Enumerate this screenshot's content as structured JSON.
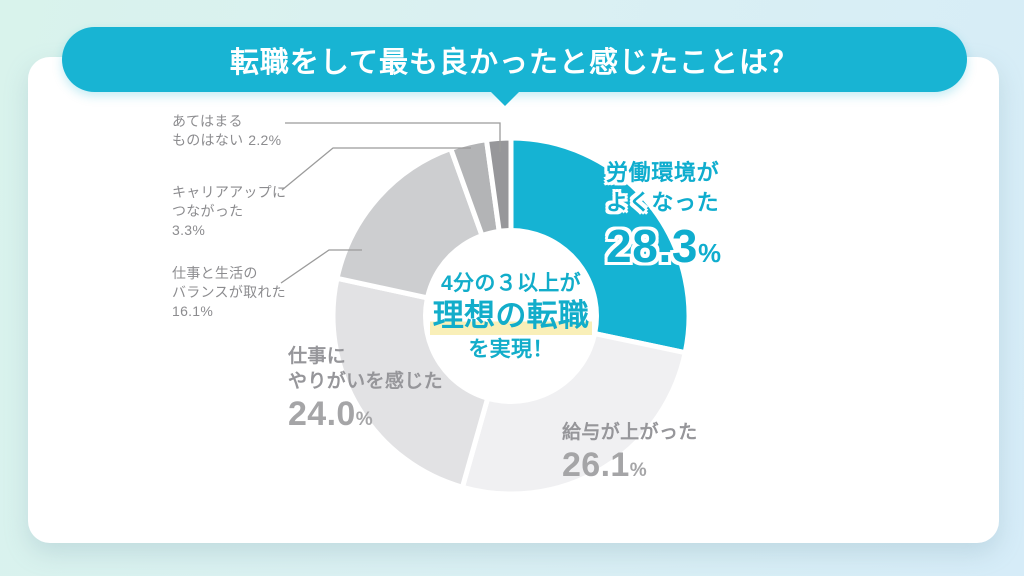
{
  "chart_data": {
    "type": "pie",
    "title": "転職をして最も良かったと感じたことは？",
    "unit": "%",
    "legend_position": "around-slices",
    "segments": [
      {
        "name": "労働環境がよくなった",
        "label_lines": [
          "労働環境が",
          "よくなった"
        ],
        "value": 28.3,
        "pct_num": "28.3",
        "pct_sign": "%",
        "color": "#15b3d3"
      },
      {
        "name": "給与が上がった",
        "label_lines": [
          "給与が上がった"
        ],
        "value": 26.1,
        "pct_num": "26.1",
        "pct_sign": "%",
        "color": "#f0f0f2"
      },
      {
        "name": "仕事にやりがいを感じた",
        "label_lines": [
          "仕事に",
          "やりがいを感じた"
        ],
        "value": 24.0,
        "pct_num": "24.0",
        "pct_sign": "%",
        "color": "#e2e2e4"
      },
      {
        "name": "仕事と生活のバランスが取れた",
        "label_lines": [
          "仕事と生活の",
          "バランスが取れた"
        ],
        "value": 16.1,
        "pct_num": "16.1",
        "pct_sign": "%",
        "color": "#cdced0"
      },
      {
        "name": "キャリアアップにつながった",
        "label_lines": [
          "キャリアアップに",
          "つながった"
        ],
        "value": 3.3,
        "pct_num": "3.3",
        "pct_sign": "%",
        "color": "#b3b4b6"
      },
      {
        "name": "あてはまるものはない",
        "label_lines": [
          "あてはまる",
          "ものはない"
        ],
        "value": 2.2,
        "pct_num": "2.2",
        "pct_sign": "%",
        "color": "#97979a"
      }
    ],
    "center_note": {
      "line1": "4分の３以上が",
      "line2": "理想の転職",
      "line3": "を実現！"
    },
    "colors": {
      "accent": "#18b4d3",
      "highlight": "#f9efb8",
      "label_gray": "#8c8c8f"
    }
  }
}
